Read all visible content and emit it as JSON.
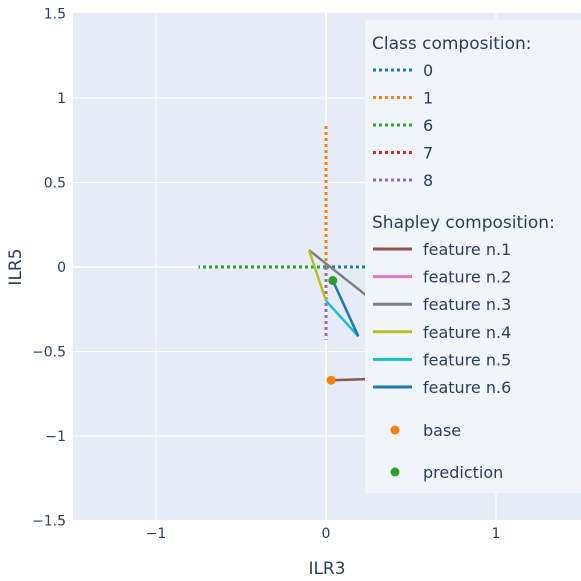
{
  "chart_data": {
    "type": "line",
    "xlabel": "ILR3",
    "ylabel": "ILR5",
    "xlim": [
      -1.5,
      1.5
    ],
    "ylim": [
      -1.5,
      1.5
    ],
    "xticks": [
      -1,
      0,
      1
    ],
    "xtick_labels": [
      "−1",
      "0",
      "1"
    ],
    "yticks": [
      -1.5,
      -1,
      -0.5,
      0,
      0.5,
      1,
      1.5
    ],
    "ytick_labels": [
      "−1.5",
      "−1",
      "−0.5",
      "0",
      "0.5",
      "1",
      "1.5"
    ],
    "grid": true,
    "legend_position": "top-right",
    "colors": {
      "plot_bg": "#e5ecf6",
      "grid": "#ffffff",
      "text": "#2a3f5f",
      "legend_bg": "#f1f4fa"
    },
    "class_legend_title": "Class composition:",
    "shapley_legend_title": "Shapley composition:",
    "class_series": [
      {
        "name": "0",
        "color": "#1f77b4",
        "x": [
          0,
          0.75
        ],
        "y": [
          0,
          0
        ]
      },
      {
        "name": "1",
        "color": "#ff7f0e",
        "x": [
          0,
          0
        ],
        "y": [
          0,
          0.85
        ]
      },
      {
        "name": "6",
        "color": "#2ca02c",
        "x": [
          0,
          -0.75
        ],
        "y": [
          0,
          0
        ]
      },
      {
        "name": "7",
        "color": "#d62728",
        "x": [
          0,
          0
        ],
        "y": [
          0,
          0
        ]
      },
      {
        "name": "8",
        "color": "#9467bd",
        "x": [
          0,
          0
        ],
        "y": [
          0,
          -0.43
        ]
      }
    ],
    "shapley_series": [
      {
        "name": "feature n.1",
        "color": "#8c564b",
        "x": [
          0.03,
          0.65
        ],
        "y": [
          -0.67,
          -0.65
        ]
      },
      {
        "name": "feature n.2",
        "color": "#e377c2",
        "x": [
          0.65,
          0.64
        ],
        "y": [
          -0.65,
          -0.49
        ]
      },
      {
        "name": "feature n.3",
        "color": "#7f7f7f",
        "x": [
          0.64,
          -0.1
        ],
        "y": [
          -0.49,
          0.1
        ]
      },
      {
        "name": "feature n.4",
        "color": "#bcbd22",
        "x": [
          -0.1,
          0.0
        ],
        "y": [
          0.1,
          -0.2
        ]
      },
      {
        "name": "feature n.5",
        "color": "#17becf",
        "x": [
          0.0,
          0.19
        ],
        "y": [
          -0.2,
          -0.41
        ]
      },
      {
        "name": "feature n.6",
        "color": "#1f77b4",
        "x": [
          0.19,
          0.04
        ],
        "y": [
          -0.41,
          -0.08
        ]
      }
    ],
    "points": [
      {
        "name": "base",
        "color": "#ff7f0e",
        "x": 0.03,
        "y": -0.67
      },
      {
        "name": "prediction",
        "color": "#2ca02c",
        "x": 0.04,
        "y": -0.08
      }
    ]
  }
}
